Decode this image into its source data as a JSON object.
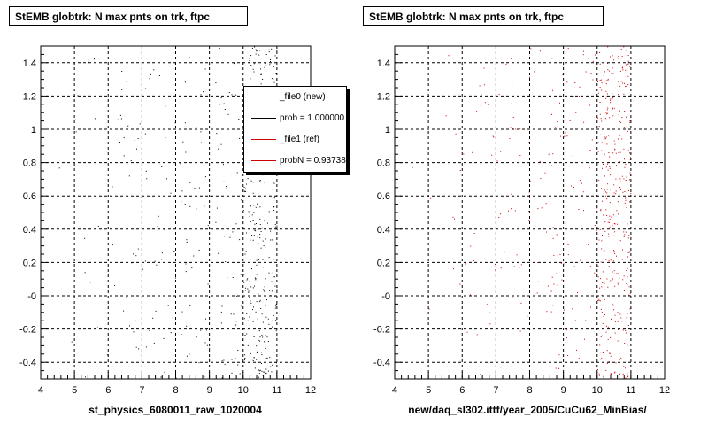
{
  "pads": [
    {
      "title": "StEMB globtrk: N max pnts on trk, ftpc",
      "xtitle": "st_physics_6080011_raw_1020004",
      "point_color": "#000000",
      "legend": [
        {
          "label": "_file0 (new)",
          "color": "#000000"
        },
        {
          "label": "prob = 1.000000",
          "color": "#000000"
        },
        {
          "label": "_file1 (ref)",
          "color": "#cc0000"
        },
        {
          "label": "probN = 0.937380",
          "color": "#cc0000"
        }
      ]
    },
    {
      "title": "StEMB globtrk: N max pnts on trk, ftpc",
      "xtitle": "new/daq_sl302.ittf/year_2005/CuCu62_MinBias/",
      "point_color": "#cc0000"
    }
  ],
  "axes": {
    "x_ticks": [
      "4",
      "5",
      "6",
      "7",
      "8",
      "9",
      "10",
      "11",
      "12"
    ],
    "y_ticks": [
      "-0.4",
      "-0.2",
      "-0",
      "0.2",
      "0.4",
      "0.6",
      "0.8",
      "1",
      "1.2",
      "1.4"
    ]
  },
  "chart_data": [
    {
      "type": "scatter",
      "title": "StEMB globtrk: N max pnts on trk, ftpc",
      "xlabel": "st_physics_6080011_raw_1020004",
      "ylabel": "",
      "xlim": [
        4,
        12
      ],
      "ylim": [
        -0.5,
        1.5
      ],
      "grid": true,
      "legend_position": "top-right",
      "series": [
        {
          "name": "_file0 (new)",
          "color": "#000000",
          "density_by_x": [
            [
              4,
              5,
              0.03
            ],
            [
              5,
              6,
              0.15
            ],
            [
              6,
              7,
              0.3
            ],
            [
              7,
              8,
              0.35
            ],
            [
              8,
              9,
              0.45
            ],
            [
              9,
              10,
              0.6
            ],
            [
              10,
              11,
              3.2
            ]
          ]
        }
      ]
    },
    {
      "type": "scatter",
      "title": "StEMB globtrk: N max pnts on trk, ftpc",
      "xlabel": "new/daq_sl302.ittf/year_2005/CuCu62_MinBias/",
      "ylabel": "",
      "xlim": [
        4,
        12
      ],
      "ylim": [
        -0.5,
        1.5
      ],
      "grid": true,
      "series": [
        {
          "name": "_file1 (ref)",
          "color": "#cc0000",
          "density_by_x": [
            [
              4,
              5,
              0.02
            ],
            [
              5,
              6,
              0.12
            ],
            [
              6,
              7,
              0.25
            ],
            [
              7,
              8,
              0.35
            ],
            [
              8,
              9,
              0.45
            ],
            [
              9,
              10,
              0.55
            ],
            [
              10,
              11,
              3.4
            ]
          ]
        }
      ]
    }
  ]
}
